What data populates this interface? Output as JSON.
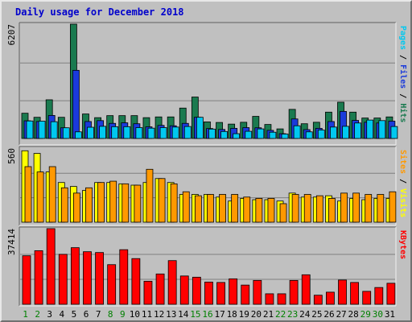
{
  "title": "Daily usage for December 2018",
  "colors": {
    "title": "#0000cc",
    "hits": "#1a7a4f",
    "files": "#1a3adb",
    "pages": "#00c8f0",
    "visits": "#ffff00",
    "sites": "#ff9900",
    "kbytes": "#ff0000",
    "weekday": "#008000",
    "plot_bg": "#c0c0c0"
  },
  "chart_data": [
    {
      "type": "bar",
      "title": "Daily usage for December 2018",
      "categories": [
        "1",
        "2",
        "3",
        "4",
        "5",
        "6",
        "7",
        "8",
        "9",
        "10",
        "11",
        "12",
        "13",
        "14",
        "15",
        "16",
        "17",
        "18",
        "19",
        "20",
        "21",
        "22",
        "23",
        "24",
        "25",
        "26",
        "27",
        "28",
        "29",
        "30",
        "31"
      ],
      "weekend_days": [
        "1",
        "2",
        "8",
        "9",
        "15",
        "16",
        "22",
        "23",
        "29",
        "30"
      ],
      "ymax_label": "6207",
      "ylim": [
        0,
        6207
      ],
      "right_labels": [
        "Pages",
        "Files",
        "Hits"
      ],
      "series": [
        {
          "name": "Hits",
          "values": [
            1370,
            1150,
            2100,
            1150,
            6207,
            1330,
            1130,
            1240,
            1240,
            1240,
            1130,
            1170,
            1170,
            1650,
            2250,
            900,
            870,
            780,
            880,
            1200,
            760,
            520,
            1580,
            800,
            880,
            1430,
            1970,
            1430,
            1110,
            1110,
            1170
          ]
        },
        {
          "name": "Files",
          "values": [
            960,
            920,
            1250,
            580,
            3700,
            920,
            970,
            820,
            850,
            800,
            630,
            710,
            690,
            820,
            1150,
            540,
            490,
            550,
            590,
            580,
            440,
            260,
            1060,
            480,
            550,
            920,
            1470,
            980,
            880,
            840,
            940
          ]
        },
        {
          "name": "Pages",
          "values": [
            950,
            940,
            910,
            580,
            360,
            610,
            660,
            640,
            640,
            590,
            560,
            590,
            620,
            650,
            1150,
            510,
            380,
            260,
            390,
            520,
            340,
            240,
            690,
            360,
            460,
            620,
            660,
            840,
            1000,
            970,
            650
          ]
        }
      ]
    },
    {
      "type": "bar",
      "categories": [
        "1",
        "2",
        "3",
        "4",
        "5",
        "6",
        "7",
        "8",
        "9",
        "10",
        "11",
        "12",
        "13",
        "14",
        "15",
        "16",
        "17",
        "18",
        "19",
        "20",
        "21",
        "22",
        "23",
        "24",
        "25",
        "26",
        "27",
        "28",
        "29",
        "30",
        "31"
      ],
      "ymax_label": "560",
      "ylim": [
        0,
        560
      ],
      "right_labels": [
        "Sites",
        "Visits"
      ],
      "series": [
        {
          "name": "Visits",
          "values": [
            540,
            520,
            380,
            300,
            270,
            240,
            300,
            300,
            290,
            280,
            300,
            330,
            300,
            210,
            210,
            210,
            190,
            160,
            180,
            170,
            170,
            160,
            220,
            190,
            190,
            200,
            160,
            180,
            170,
            180,
            180
          ]
        },
        {
          "name": "Sites",
          "values": [
            420,
            380,
            420,
            260,
            220,
            260,
            300,
            310,
            290,
            280,
            400,
            330,
            290,
            230,
            200,
            210,
            210,
            210,
            190,
            180,
            180,
            140,
            210,
            210,
            200,
            180,
            220,
            220,
            210,
            210,
            230
          ]
        }
      ]
    },
    {
      "type": "bar",
      "categories": [
        "1",
        "2",
        "3",
        "4",
        "5",
        "6",
        "7",
        "8",
        "9",
        "10",
        "11",
        "12",
        "13",
        "14",
        "15",
        "16",
        "17",
        "18",
        "19",
        "20",
        "21",
        "22",
        "23",
        "24",
        "25",
        "26",
        "27",
        "28",
        "29",
        "30",
        "31"
      ],
      "ymax_label": "37414",
      "ylim": [
        0,
        37414
      ],
      "right_labels": [
        "KBytes"
      ],
      "series": [
        {
          "name": "KBytes",
          "values": [
            24000,
            26500,
            37414,
            24700,
            28000,
            26000,
            25600,
            19600,
            27000,
            22600,
            11400,
            15000,
            21600,
            14000,
            13400,
            11000,
            10800,
            12600,
            9500,
            11800,
            5200,
            5200,
            11800,
            14600,
            4500,
            6000,
            12000,
            10800,
            6400,
            8300,
            10400
          ]
        }
      ]
    }
  ]
}
